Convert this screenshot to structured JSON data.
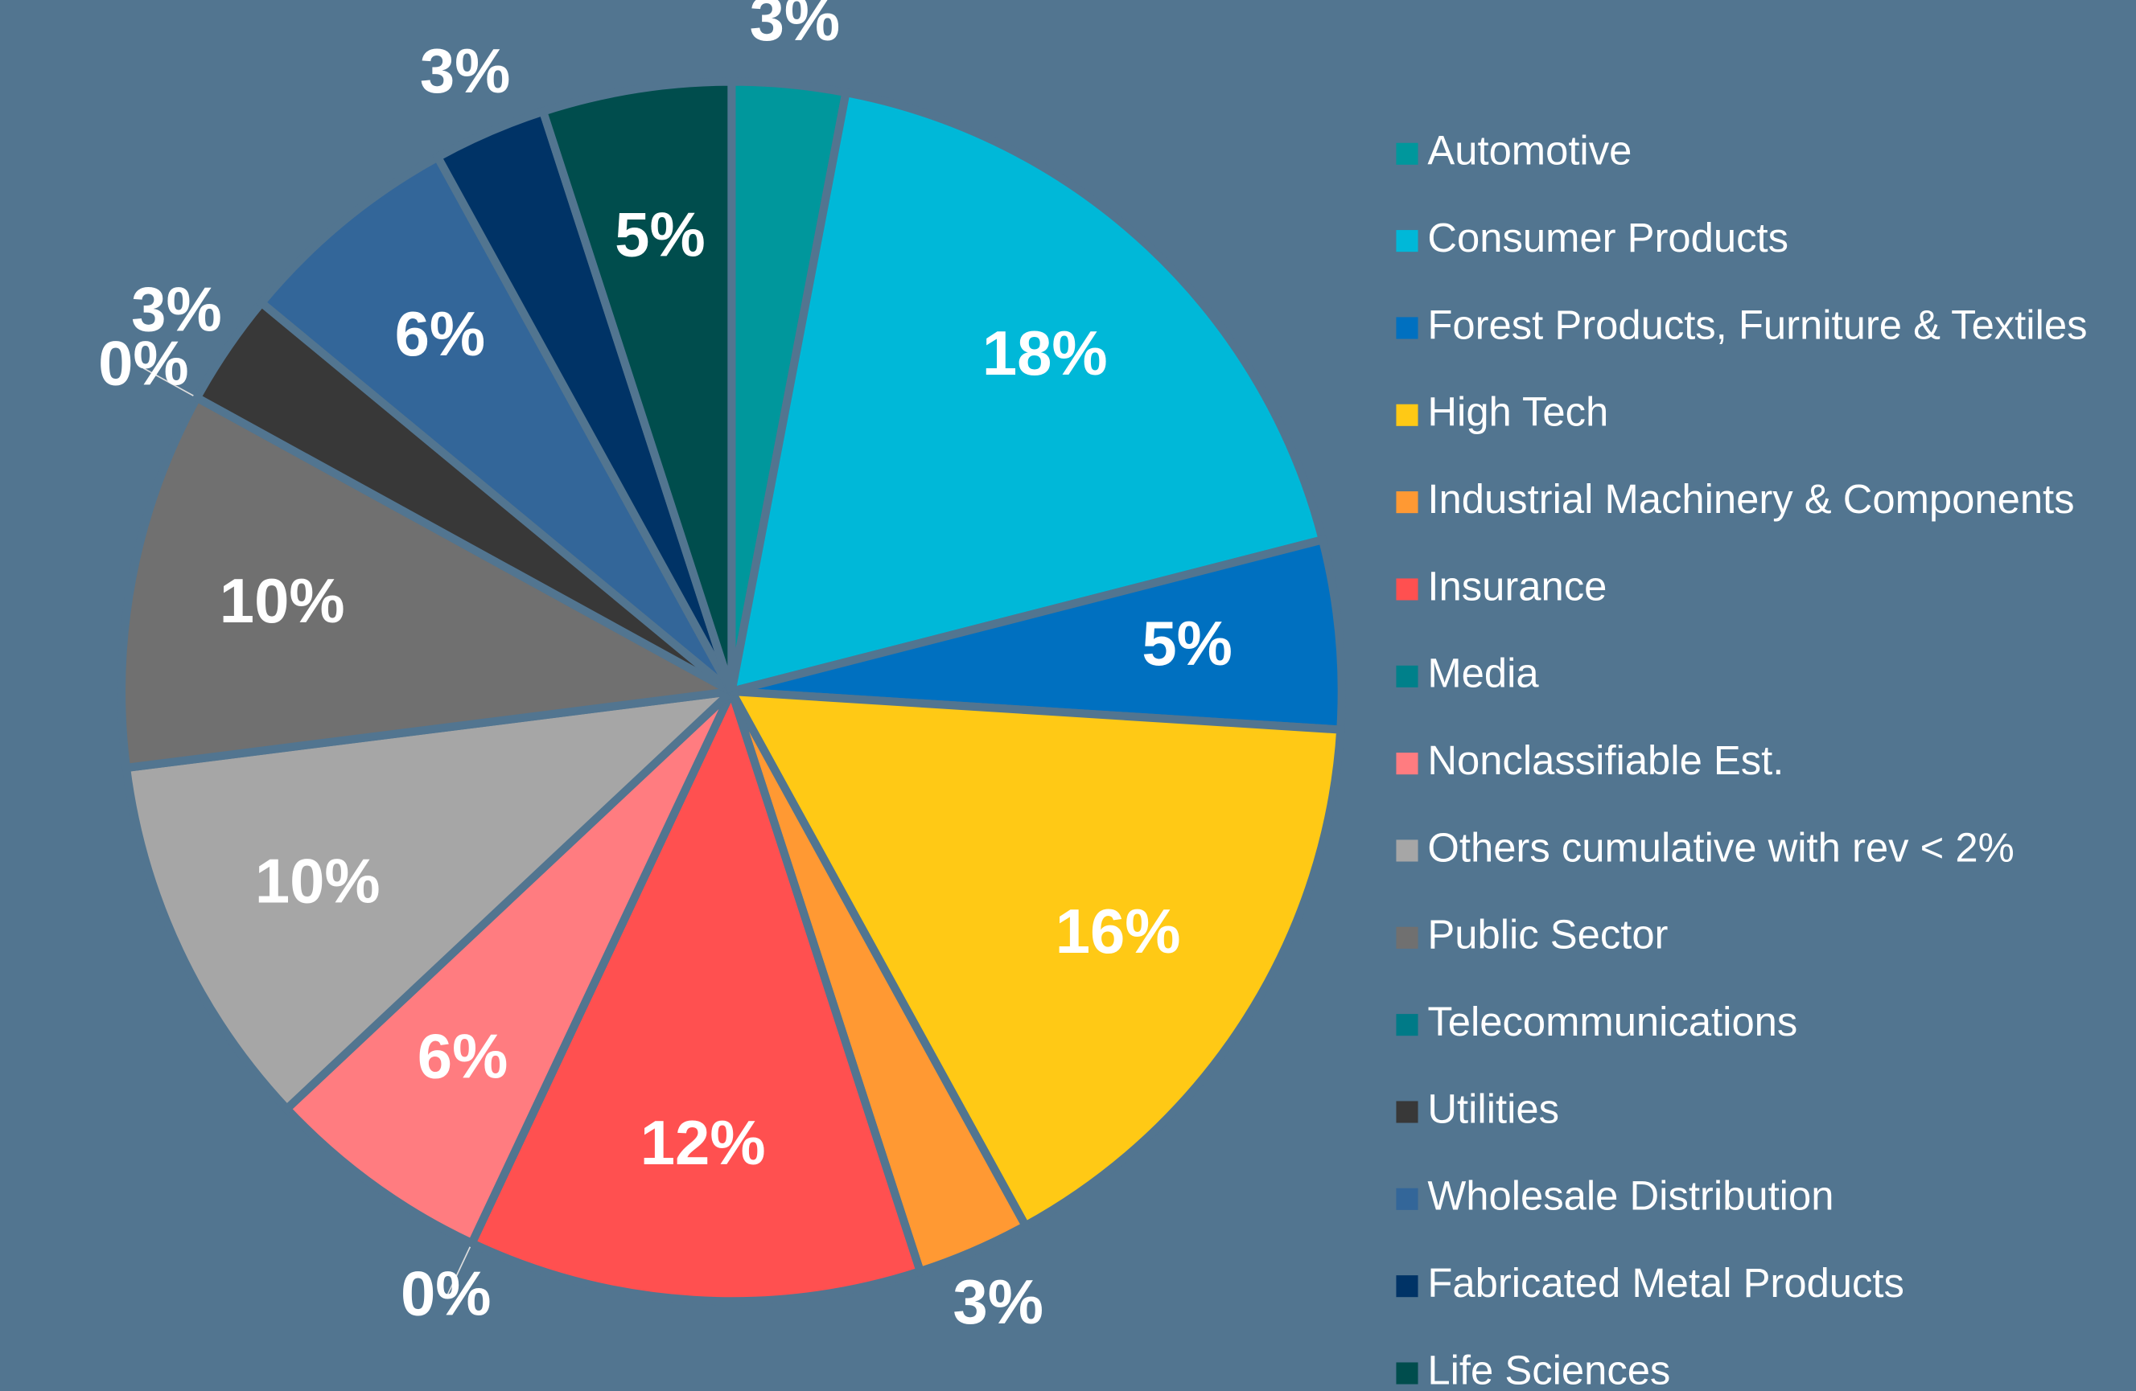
{
  "chart_data": {
    "type": "pie",
    "categories": [
      "Automotive",
      "Consumer Products",
      "Forest Products, Furniture & Textiles",
      "High Tech",
      "Industrial Machinery & Components",
      "Insurance",
      "Media",
      "Nonclassifiable Est.",
      "Others cumulative with rev < 2%",
      "Public Sector",
      "Telecommunications",
      "Utilities",
      "Wholesale Distribution",
      "Fabricated Metal Products",
      "Life Sciences"
    ],
    "values": [
      3,
      18,
      5,
      16,
      3,
      12,
      0,
      6,
      10,
      10,
      0,
      3,
      6,
      3,
      5
    ],
    "value_labels": [
      "3%",
      "18%",
      "5%",
      "16%",
      "3%",
      "12%",
      "0%",
      "6%",
      "10%",
      "10%",
      "0%",
      "3%",
      "6%",
      "3%",
      "5%"
    ],
    "colors": [
      "#00979c",
      "#00b8d8",
      "#0070c0",
      "#ffc915",
      "#ff9933",
      "#ff5050",
      "#00808a",
      "#ff7c80",
      "#a6a6a6",
      "#707070",
      "#007a87",
      "#383838",
      "#336699",
      "#003366",
      "#004d4d"
    ],
    "legend": "right"
  }
}
